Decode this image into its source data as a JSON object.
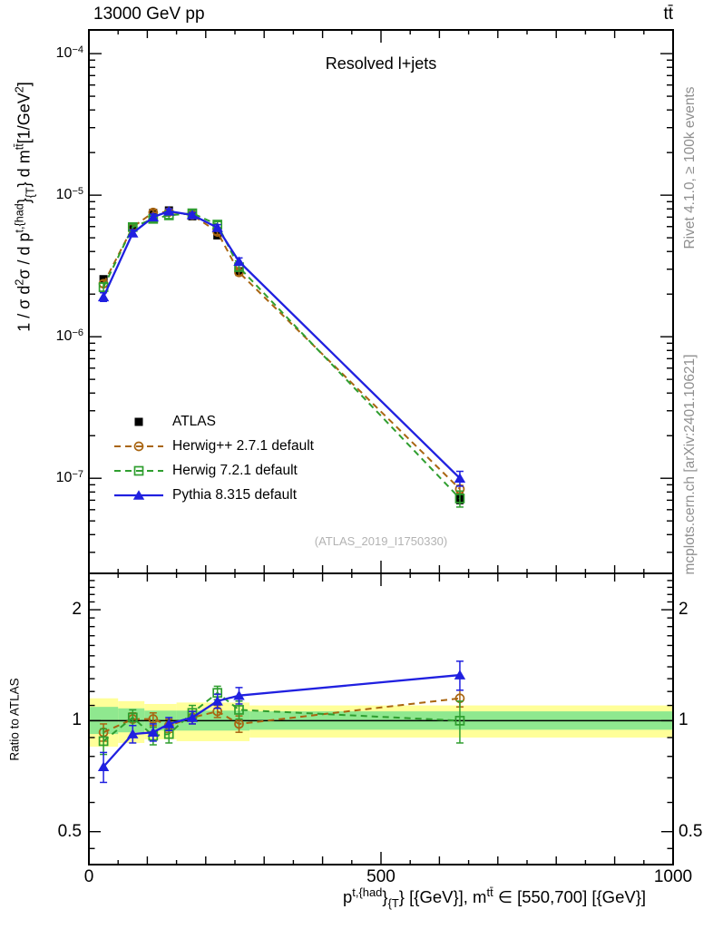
{
  "chart_data": {
    "type": "line",
    "collider_label": "13000 GeV pp",
    "process_label": "tt̄",
    "panel_title": "Resolved l+jets",
    "watermark": "(ATLAS_2019_I1750330)",
    "credits_top": "Rivet 4.1.0, ≥ 100k events",
    "credits_bottom": "mcplots.cern.ch [arXiv:2401.10621]",
    "ratio_ylabel": "Ratio to ATLAS",
    "ylabel_segments": [
      {
        "t": "1 / σ d"
      },
      {
        "t": "2",
        "s": "sup"
      },
      {
        "t": "σ / d p"
      },
      {
        "t": "t,{had",
        "s": "sup"
      },
      {
        "t": "}"
      },
      {
        "t": "{T",
        "s": "sub"
      },
      {
        "t": "} d m"
      },
      {
        "t": "tt̄",
        "s": "sup"
      },
      {
        "t": "[1/GeV"
      },
      {
        "t": "2",
        "s": "sup"
      },
      {
        "t": "]"
      }
    ],
    "xlabel_segments": [
      {
        "t": "p"
      },
      {
        "t": "t,{had",
        "s": "sup"
      },
      {
        "t": "}"
      },
      {
        "t": "{T",
        "s": "sub"
      },
      {
        "t": "} [{GeV}], m"
      },
      {
        "t": "tt̄",
        "s": "sup"
      },
      {
        "t": " ∈ [550,700] [{GeV}]"
      }
    ],
    "xlim": [
      0,
      1000
    ],
    "x_minor_step": 50,
    "x_major_ticks": [
      0,
      500,
      1000
    ],
    "x_tick_labels": [
      "0",
      "500",
      "1000"
    ],
    "main_ylim": [
      2.13e-08,
      0.000147
    ],
    "y_tick_exponents": [
      -4,
      -5,
      -6,
      -7
    ],
    "ratio_ylim": [
      0.407,
      2.51
    ],
    "ratio_major_ticks": [
      2,
      1,
      0.5
    ],
    "ratio_tick_labels": [
      "2",
      "1",
      "0.5"
    ],
    "ratio_minor_ticks": [
      0.45,
      0.6,
      0.7,
      0.8,
      0.9,
      1.1,
      1.2,
      1.3,
      1.4,
      1.5,
      1.6,
      1.7,
      1.8,
      1.9,
      2.1,
      2.2,
      2.3,
      2.4
    ],
    "x": [
      25,
      75,
      110,
      137,
      177,
      220,
      257,
      635
    ],
    "series": [
      {
        "name": "ATLAS",
        "marker": "filled-square",
        "color": "#000000",
        "line": "none",
        "values": [
          2.55e-06,
          5.9e-06,
          7.5e-06,
          7.8e-06,
          7.1e-06,
          5.2e-06,
          2.9e-06,
          7.2e-08
        ],
        "err_frac": [
          0.05,
          0.03,
          0.03,
          0.03,
          0.03,
          0.04,
          0.05,
          0.08
        ]
      },
      {
        "name": "Herwig++ 2.7.1 default",
        "marker": "open-circle",
        "color": "#a96511",
        "line": "dashed",
        "values": [
          2.37e-06,
          5.95e-06,
          7.55e-06,
          7.6e-06,
          7.25e-06,
          5.5e-06,
          2.85e-06,
          8.4e-08
        ],
        "err_frac": [
          0.05,
          0.04,
          0.04,
          0.04,
          0.04,
          0.04,
          0.05,
          0.06
        ],
        "ratio": [
          0.93,
          1.01,
          1.01,
          0.97,
          1.02,
          1.06,
          0.98,
          1.15
        ],
        "ratio_err": [
          0.05,
          0.04,
          0.04,
          0.04,
          0.04,
          0.04,
          0.05,
          0.06
        ]
      },
      {
        "name": "Herwig 7.2.1 default",
        "marker": "open-square",
        "color": "#2f9e2f",
        "line": "dashed",
        "values": [
          2.24e-06,
          5.95e-06,
          6.8e-06,
          7.2e-06,
          7.45e-06,
          6.2e-06,
          3.1e-06,
          7.2e-08
        ],
        "err_frac": [
          0.07,
          0.05,
          0.05,
          0.05,
          0.05,
          0.05,
          0.06,
          0.13
        ],
        "ratio": [
          0.88,
          1.02,
          0.91,
          0.92,
          1.05,
          1.19,
          1.07,
          1.0
        ],
        "ratio_err": [
          0.07,
          0.05,
          0.05,
          0.05,
          0.05,
          0.05,
          0.06,
          0.13
        ]
      },
      {
        "name": "Pythia 8.315 default",
        "marker": "filled-triangle",
        "color": "#2020e0",
        "line": "solid",
        "values": [
          1.91e-06,
          5.4e-06,
          7e-06,
          7.7e-06,
          7.25e-06,
          5.9e-06,
          3.4e-06,
          1e-07
        ],
        "err_frac": [
          0.07,
          0.05,
          0.05,
          0.04,
          0.04,
          0.05,
          0.06,
          0.12
        ],
        "ratio": [
          0.75,
          0.92,
          0.93,
          0.98,
          1.02,
          1.13,
          1.17,
          1.33
        ],
        "ratio_err": [
          0.07,
          0.05,
          0.05,
          0.04,
          0.04,
          0.05,
          0.06,
          0.12
        ]
      }
    ],
    "atlas_band": {
      "yellow_color": "#ffff99",
      "green_color": "#8fe88f",
      "segments": [
        {
          "x0": 0,
          "x1": 50,
          "yellow": [
            0.85,
            1.15
          ],
          "green": [
            0.92,
            1.09
          ]
        },
        {
          "x0": 50,
          "x1": 95,
          "yellow": [
            0.87,
            1.13
          ],
          "green": [
            0.93,
            1.08
          ]
        },
        {
          "x0": 95,
          "x1": 150,
          "yellow": [
            0.89,
            1.11
          ],
          "green": [
            0.94,
            1.065
          ]
        },
        {
          "x0": 150,
          "x1": 275,
          "yellow": [
            0.88,
            1.12
          ],
          "green": [
            0.94,
            1.065
          ]
        },
        {
          "x0": 275,
          "x1": 1000,
          "yellow": [
            0.9,
            1.1
          ],
          "green": [
            0.945,
            1.06
          ]
        }
      ]
    },
    "legend": [
      {
        "label": "ATLAS"
      },
      {
        "label": "Herwig++ 2.7.1 default"
      },
      {
        "label": "Herwig 7.2.1 default"
      },
      {
        "label": "Pythia 8.315 default"
      }
    ]
  }
}
